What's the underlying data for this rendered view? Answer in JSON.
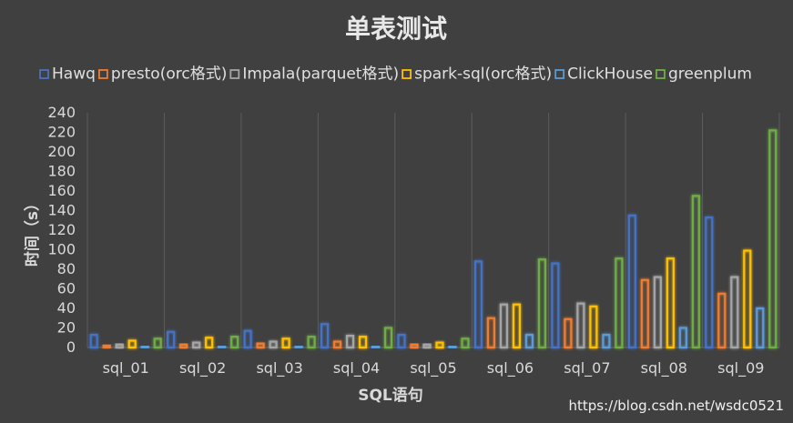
{
  "chart_data": {
    "type": "bar",
    "title": "单表测试",
    "xlabel": "SQL语句",
    "ylabel": "时间（s）",
    "ylim": [
      0,
      240
    ],
    "ytick_step": 20,
    "grid": "vertical category separators",
    "legend_position": "top",
    "categories": [
      "sql_01",
      "sql_02",
      "sql_03",
      "sql_04",
      "sql_05",
      "sql_06",
      "sql_07",
      "sql_08",
      "sql_09"
    ],
    "series": [
      {
        "name": "Hawq",
        "color": "#4472c4",
        "values": [
          13,
          16,
          17,
          24,
          13,
          88,
          86,
          135,
          133
        ]
      },
      {
        "name": "presto(orc格式)",
        "color": "#ed7d31",
        "values": [
          2,
          3,
          4,
          6,
          3,
          30,
          29,
          69,
          55
        ]
      },
      {
        "name": "Impala(parquet格式)",
        "color": "#a5a5a5",
        "values": [
          3,
          5,
          6,
          12,
          3,
          44,
          45,
          72,
          72
        ]
      },
      {
        "name": "spark-sql(orc格式)",
        "color": "#ffc000",
        "values": [
          7,
          10,
          9,
          11,
          5,
          44,
          42,
          91,
          99
        ]
      },
      {
        "name": "ClickHouse",
        "color": "#5b9bd5",
        "values": [
          1,
          1,
          1,
          1,
          1,
          13,
          13,
          20,
          40
        ]
      },
      {
        "name": "greenplum",
        "color": "#70ad47",
        "values": [
          9,
          11,
          11,
          20,
          9,
          90,
          91,
          155,
          222
        ]
      }
    ]
  },
  "watermark": "https://blog.csdn.net/wsdc0521"
}
